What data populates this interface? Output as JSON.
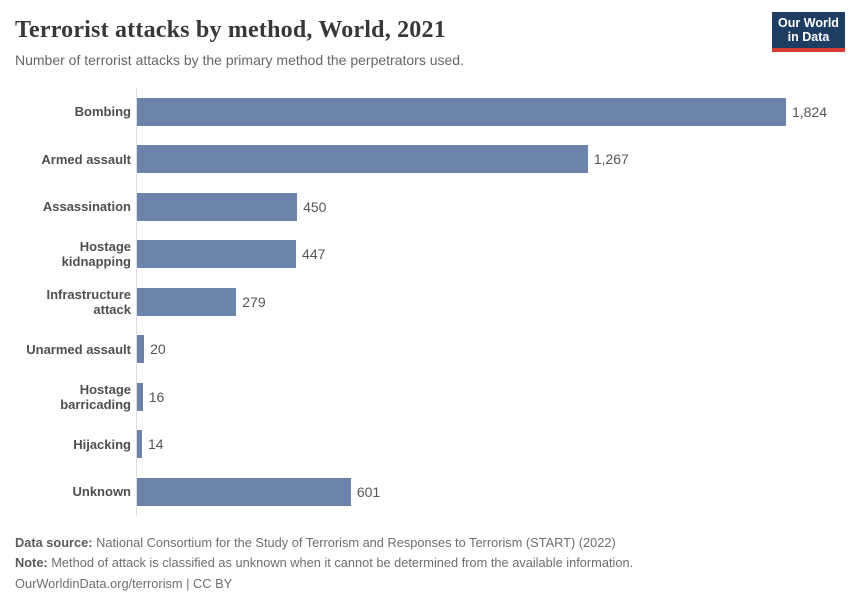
{
  "header": {
    "title": "Terrorist attacks by method, World, 2021",
    "subtitle": "Number of terrorist attacks by the primary method the perpetrators used.",
    "logo": {
      "line1": "Our World",
      "line2": "in Data",
      "bg_color": "#1d3d63",
      "accent_color": "#d73c34"
    }
  },
  "chart_data": {
    "type": "bar",
    "orientation": "horizontal",
    "title": "Terrorist attacks by method, World, 2021",
    "xlabel": "",
    "ylabel": "",
    "categories": [
      "Bombing",
      "Armed assault",
      "Assassination",
      "Hostage kidnapping",
      "Infrastructure attack",
      "Unarmed assault",
      "Hostage barricading",
      "Hijacking",
      "Unknown"
    ],
    "values": [
      1824,
      1267,
      450,
      447,
      279,
      20,
      16,
      14,
      601
    ],
    "value_labels": [
      "1,824",
      "1,267",
      "450",
      "447",
      "279",
      "20",
      "16",
      "14",
      "601"
    ],
    "xlim": [
      0,
      1824
    ],
    "grid": false,
    "legend": false,
    "bar_color": "#6c84ab",
    "axis_line_color": "#dddddd"
  },
  "footer": {
    "data_source_label": "Data source:",
    "data_source_text": "National Consortium for the Study of Terrorism and Responses to Terrorism (START) (2022)",
    "note_label": "Note:",
    "note_text": "Method of attack is classified as unknown when it cannot be determined from the available information.",
    "link_text": "OurWorldinData.org/terrorism | CC BY"
  }
}
